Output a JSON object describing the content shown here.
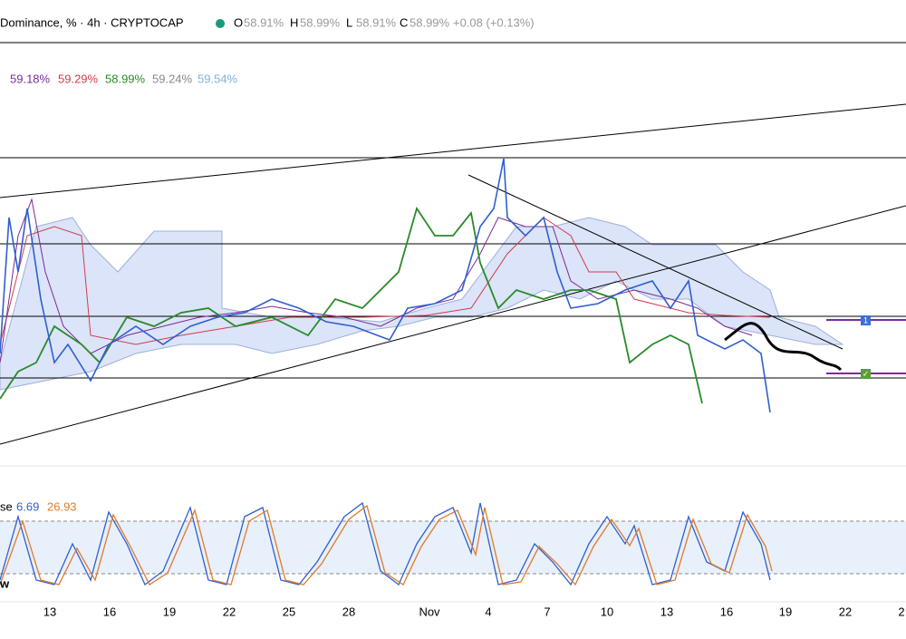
{
  "header": {
    "title": "Dominance, % · 4h · CRYPTOCAP",
    "ohlc": [
      {
        "label": "O",
        "value": "58.91%"
      },
      {
        "label": "H",
        "value": "58.99%"
      },
      {
        "label": "L",
        "value": "58.91%"
      },
      {
        "label": "C",
        "value": "58.99%"
      }
    ],
    "change": "+0.08 (+0.13%)"
  },
  "indicator_values": [
    "59.18%",
    "59.29%",
    "58.99%",
    "59.24%",
    "59.54%"
  ],
  "oscillator": {
    "name": "se",
    "values": [
      "6.69",
      "26.93"
    ]
  },
  "markers": [
    "1",
    "✓"
  ],
  "corner_label": "w",
  "x_axis": [
    "13",
    "16",
    "19",
    "22",
    "25",
    "28",
    "Nov",
    "4",
    "7",
    "10",
    "13",
    "16",
    "19",
    "22",
    "2"
  ]
}
